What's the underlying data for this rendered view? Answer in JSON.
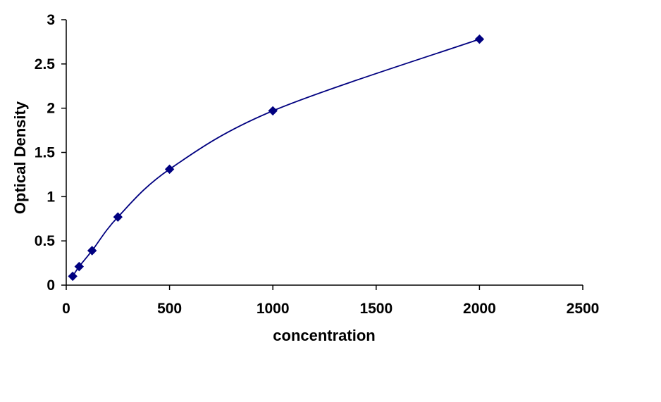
{
  "chart_data": {
    "type": "line",
    "title": "",
    "xlabel": "concentration",
    "ylabel": "Optical Density",
    "xlim": [
      0,
      2500
    ],
    "ylim": [
      0,
      3
    ],
    "xticks": [
      0,
      500,
      1000,
      1500,
      2000,
      2500
    ],
    "yticks": [
      0,
      0.5,
      1,
      1.5,
      2,
      2.5,
      3
    ],
    "xtick_labels": [
      "0",
      "500",
      "1000",
      "1500",
      "2000",
      "2500"
    ],
    "ytick_labels": [
      "0",
      "0.5",
      "1",
      "1.5",
      "2",
      "2.5",
      "3"
    ],
    "grid": false,
    "legend": "none",
    "series": [
      {
        "x": [
          31.25,
          62.5,
          125,
          250,
          500,
          1000,
          2000
        ],
        "y": [
          0.1,
          0.21,
          0.39,
          0.77,
          1.31,
          1.97,
          2.78
        ],
        "marker": "diamond",
        "smooth": true,
        "color": "#000080"
      }
    ]
  }
}
